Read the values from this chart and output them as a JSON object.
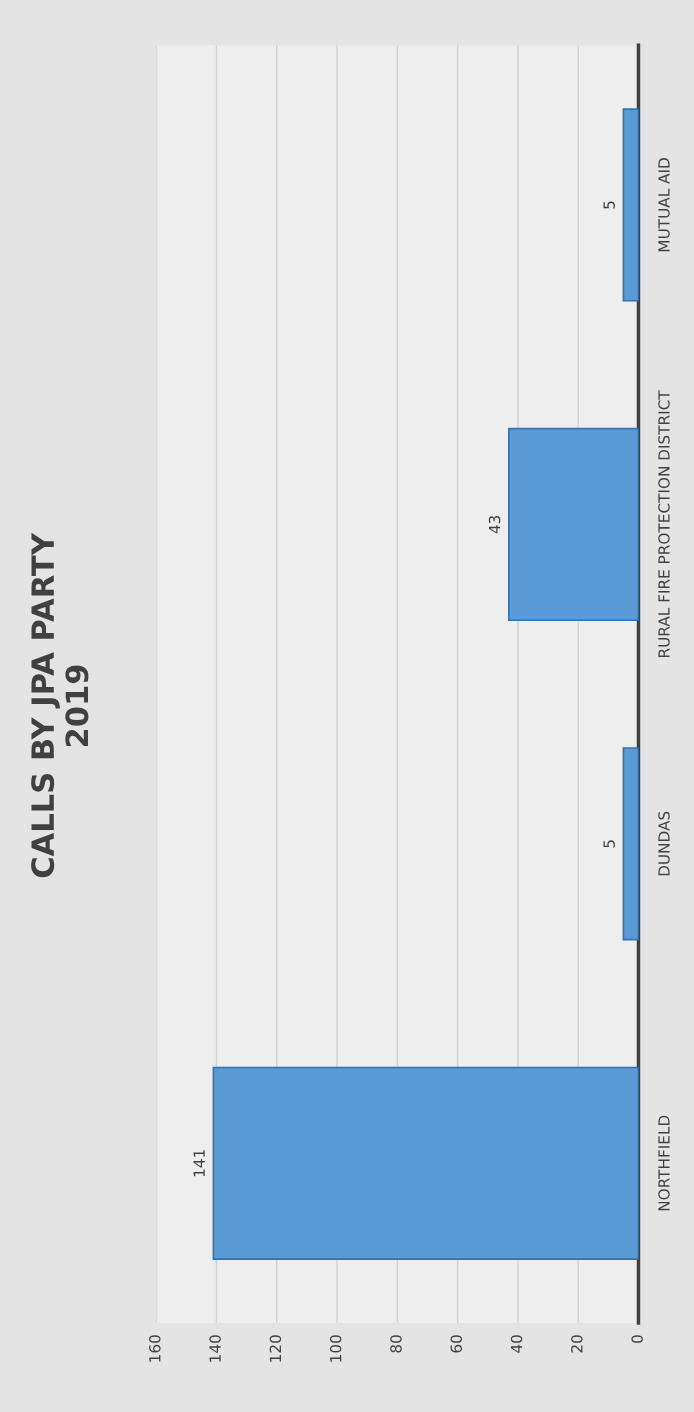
{
  "chart_data": {
    "type": "bar",
    "orientation": "horizontal",
    "title": "CALLS BY JPA PARTY\n2019",
    "categories": [
      "MUTUAL AID",
      "RURAL FIRE PROTECTION DISTRICT",
      "DUNDAS",
      "NORTHFIELD"
    ],
    "values": [
      5,
      43,
      5,
      141
    ],
    "color": "#5b9bd5",
    "data_labels": true,
    "xlim": [
      160,
      0
    ],
    "xticks": [
      0,
      20,
      40,
      60,
      80,
      100,
      120,
      140,
      160
    ],
    "grid": "x"
  }
}
